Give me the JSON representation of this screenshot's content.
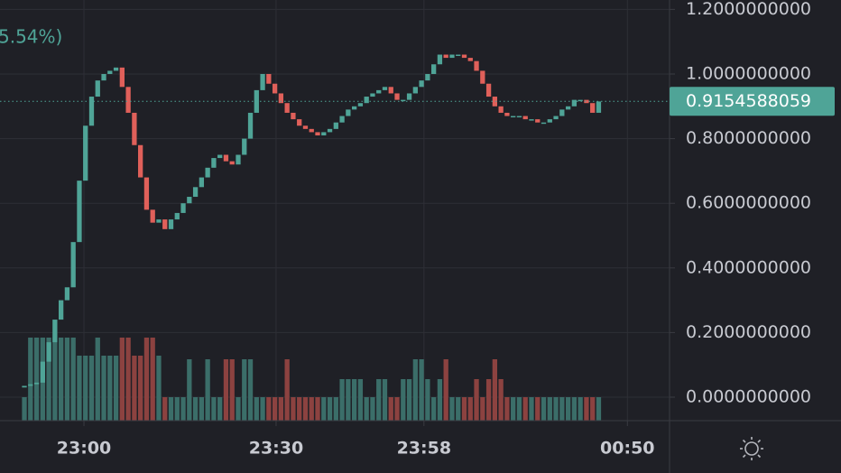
{
  "chart_data": {
    "type": "candlestick",
    "change_label": "5.54%)",
    "open": [
      0.03,
      0.035,
      0.04,
      0.045,
      0.11,
      0.17,
      0.24,
      0.3,
      0.34,
      0.48,
      0.67,
      0.84,
      0.93,
      0.98,
      1.0,
      1.01,
      1.02,
      0.96,
      0.88,
      0.78,
      0.68,
      0.58,
      0.54,
      0.55,
      0.52,
      0.55,
      0.57,
      0.6,
      0.62,
      0.65,
      0.68,
      0.71,
      0.74,
      0.75,
      0.73,
      0.72,
      0.75,
      0.8,
      0.88,
      0.95,
      1.0,
      0.97,
      0.94,
      0.91,
      0.88,
      0.86,
      0.84,
      0.83,
      0.82,
      0.81,
      0.82,
      0.83,
      0.85,
      0.87,
      0.89,
      0.9,
      0.91,
      0.93,
      0.94,
      0.95,
      0.96,
      0.94,
      0.92,
      0.92,
      0.94,
      0.96,
      0.98,
      1.0,
      1.03,
      1.06,
      1.05,
      1.06,
      1.06,
      1.05,
      1.04,
      1.01,
      0.97,
      0.93,
      0.9,
      0.88,
      0.87,
      0.87,
      0.87,
      0.86,
      0.86,
      0.85,
      0.85,
      0.86,
      0.87,
      0.89,
      0.9,
      0.92,
      0.92,
      0.91,
      0.88
    ],
    "close": [
      0.035,
      0.04,
      0.045,
      0.11,
      0.17,
      0.24,
      0.3,
      0.34,
      0.48,
      0.67,
      0.84,
      0.93,
      0.98,
      1.0,
      1.01,
      1.02,
      0.96,
      0.88,
      0.78,
      0.68,
      0.58,
      0.54,
      0.55,
      0.52,
      0.55,
      0.57,
      0.6,
      0.62,
      0.65,
      0.68,
      0.71,
      0.74,
      0.75,
      0.73,
      0.72,
      0.75,
      0.8,
      0.88,
      0.95,
      1.0,
      0.97,
      0.94,
      0.91,
      0.88,
      0.86,
      0.84,
      0.83,
      0.82,
      0.81,
      0.82,
      0.83,
      0.85,
      0.87,
      0.89,
      0.9,
      0.91,
      0.93,
      0.94,
      0.95,
      0.96,
      0.94,
      0.92,
      0.92,
      0.94,
      0.96,
      0.98,
      1.0,
      1.03,
      1.06,
      1.05,
      1.06,
      1.06,
      1.05,
      1.04,
      1.01,
      0.97,
      0.93,
      0.9,
      0.88,
      0.87,
      0.87,
      0.87,
      0.86,
      0.86,
      0.85,
      0.85,
      0.86,
      0.87,
      0.89,
      0.9,
      0.92,
      0.92,
      0.91,
      0.88,
      0.915
    ],
    "volume": [
      26,
      92,
      92,
      92,
      92,
      92,
      92,
      92,
      92,
      72,
      72,
      72,
      92,
      72,
      72,
      72,
      92,
      92,
      72,
      72,
      92,
      92,
      72,
      26,
      26,
      26,
      26,
      68,
      26,
      26,
      68,
      26,
      26,
      68,
      68,
      26,
      68,
      68,
      26,
      26,
      26,
      26,
      26,
      68,
      26,
      26,
      26,
      26,
      26,
      26,
      26,
      26,
      46,
      46,
      46,
      46,
      26,
      26,
      46,
      46,
      26,
      26,
      46,
      46,
      68,
      68,
      46,
      26,
      46,
      68,
      26,
      26,
      26,
      26,
      46,
      26,
      46,
      68,
      46,
      26,
      26,
      26,
      26,
      26,
      26,
      26,
      26,
      26,
      26,
      26,
      26,
      26,
      26,
      26,
      26
    ],
    "colors": {
      "up": "#4fa497",
      "down": "#e0605a",
      "volume_up": "#3b6e69",
      "volume_down": "#8c4240"
    },
    "last_price": {
      "value": 0.9154588059,
      "label": "0.9154588059"
    },
    "xlim": [
      -3.99,
      105.6
    ],
    "xticks": [
      {
        "value": 9.75,
        "label": "23:00"
      },
      {
        "value": 41.2,
        "label": "23:30"
      },
      {
        "value": 65.4,
        "label": "23:58"
      },
      {
        "value": 98.7,
        "label": "00:50"
      }
    ],
    "ylim": [
      -0.0726,
      1.229
    ],
    "yticks": [
      {
        "value": 0,
        "label": "0.0000000000"
      },
      {
        "value": 0.2,
        "label": "0.2000000000"
      },
      {
        "value": 0.4,
        "label": "0.4000000000"
      },
      {
        "value": 0.6,
        "label": "0.6000000000"
      },
      {
        "value": 0.8,
        "label": "0.8000000000"
      },
      {
        "value": 1,
        "label": "1.0000000000"
      },
      {
        "value": 1.2,
        "label": "1.2000000000"
      }
    ],
    "grid": true
  }
}
